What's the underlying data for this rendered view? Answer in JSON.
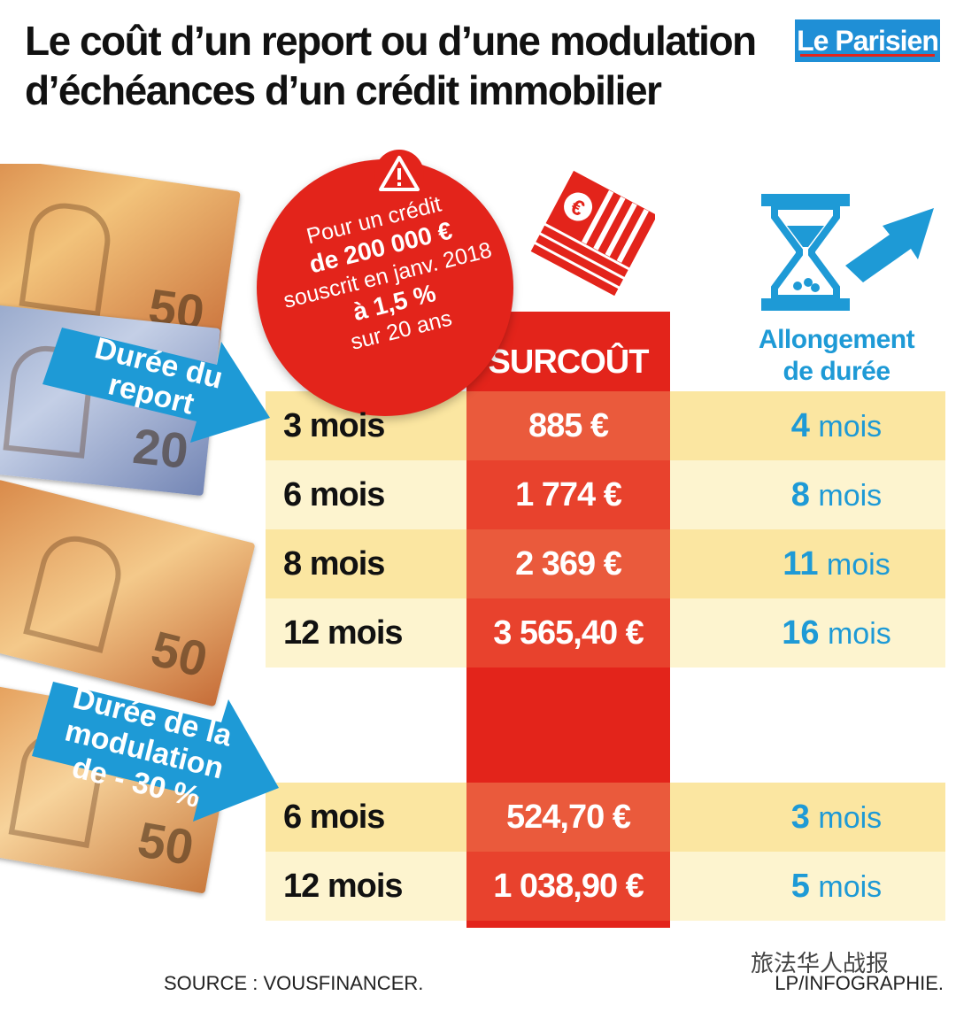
{
  "title": {
    "line1": "Le coût d’un report ou d’une modulation",
    "line2": "d’échéances d’un crédit immobilier"
  },
  "logo": {
    "text": "Le Parisien",
    "color": "#1f8fd6"
  },
  "sticker": {
    "line1": "Pour un crédit",
    "line2": "de 200 000 €",
    "line3": "souscrit en janv. 2018",
    "line4": "à 1,5 %",
    "line5": "sur 20 ans",
    "icon": "warning-icon",
    "color": "#e3241b"
  },
  "headers": {
    "surcout": "SURCOÛT",
    "allongement_line1": "Allongement",
    "allongement_line2": "de durée"
  },
  "report": {
    "label": "Durée du report",
    "rows": [
      {
        "duree": "3 mois",
        "surcout": "885 €",
        "allongement_num": "4",
        "allongement_unit": "mois"
      },
      {
        "duree": "6 mois",
        "surcout": "1 774 €",
        "allongement_num": "8",
        "allongement_unit": "mois"
      },
      {
        "duree": "8 mois",
        "surcout": "2 369 €",
        "allongement_num": "11",
        "allongement_unit": "mois"
      },
      {
        "duree": "12 mois",
        "surcout": "3 565,40 €",
        "allongement_num": "16",
        "allongement_unit": "mois"
      }
    ]
  },
  "modulation": {
    "label": "Durée de la modulation de - 30 %",
    "rows": [
      {
        "duree": "6 mois",
        "surcout": "524,70 €",
        "allongement_num": "3",
        "allongement_unit": "mois"
      },
      {
        "duree": "12 mois",
        "surcout": "1 038,90 €",
        "allongement_num": "5",
        "allongement_unit": "mois"
      }
    ]
  },
  "footer": {
    "source": "SOURCE : VOUSFINANCER.",
    "credit": "LP/INFOGRAPHIE.",
    "wechat": "旅法华人战报"
  },
  "colors": {
    "red": "#e3241b",
    "blue": "#1e9ad6",
    "row_light": "#fdf4cf",
    "row_dark": "#fbe6a1"
  },
  "icons": [
    "euro-banknotes-illustration",
    "hourglass-icon",
    "arrow-up-right-icon",
    "euro-stack-icon"
  ]
}
